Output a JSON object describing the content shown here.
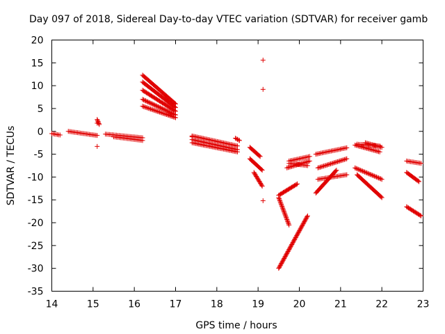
{
  "chart_data": {
    "type": "scatter",
    "title": "Day 097 of 2018, Sidereal Day-to-day VTEC variation (SDTVAR) for receiver gamb",
    "xlabel": "GPS time / hours",
    "ylabel": "SDTVAR / TECUs",
    "xlim": [
      14,
      23
    ],
    "ylim": [
      -35,
      20
    ],
    "x_ticks": [
      "14",
      "15",
      "16",
      "17",
      "18",
      "19",
      "20",
      "21",
      "22",
      "23"
    ],
    "y_ticks": [
      "20",
      "15",
      "10",
      "5",
      "0",
      "-5",
      "-10",
      "-15",
      "-20",
      "-25",
      "-30",
      "-35"
    ],
    "grid": false,
    "marker": "+",
    "color": "#e00000",
    "segments": [
      {
        "x": [
          14.0,
          14.2
        ],
        "y": [
          -0.5,
          -0.8
        ]
      },
      {
        "x": [
          14.4,
          15.1
        ],
        "y": [
          0.0,
          -0.9
        ]
      },
      {
        "x": [
          15.1,
          15.15
        ],
        "y": [
          2.6,
          1.5
        ]
      },
      {
        "x": [
          15.3,
          16.2
        ],
        "y": [
          -0.6,
          -1.4
        ]
      },
      {
        "x": [
          15.5,
          16.2
        ],
        "y": [
          -1.2,
          -2.0
        ]
      },
      {
        "x": [
          16.2,
          17.0
        ],
        "y": [
          12.3,
          6.0
        ]
      },
      {
        "x": [
          16.2,
          17.0
        ],
        "y": [
          10.8,
          5.2
        ]
      },
      {
        "x": [
          16.2,
          17.0
        ],
        "y": [
          9.0,
          4.4
        ]
      },
      {
        "x": [
          16.2,
          17.0
        ],
        "y": [
          7.0,
          3.6
        ]
      },
      {
        "x": [
          16.2,
          17.0
        ],
        "y": [
          5.5,
          3.0
        ]
      },
      {
        "x": [
          17.4,
          18.5
        ],
        "y": [
          -1.0,
          -3.2
        ]
      },
      {
        "x": [
          17.4,
          18.5
        ],
        "y": [
          -1.8,
          -4.0
        ]
      },
      {
        "x": [
          17.4,
          18.5
        ],
        "y": [
          -2.5,
          -4.5
        ]
      },
      {
        "x": [
          18.45,
          18.55
        ],
        "y": [
          -1.5,
          -2.0
        ]
      },
      {
        "x": [
          18.8,
          19.05
        ],
        "y": [
          -3.5,
          -5.5
        ]
      },
      {
        "x": [
          18.8,
          19.1
        ],
        "y": [
          -6.0,
          -8.5
        ]
      },
      {
        "x": [
          18.9,
          19.1
        ],
        "y": [
          -9.0,
          -12.0
        ]
      },
      {
        "x": [
          19.5,
          19.75
        ],
        "y": [
          -14.5,
          -20.5
        ]
      },
      {
        "x": [
          19.5,
          19.95
        ],
        "y": [
          -14.0,
          -11.5
        ]
      },
      {
        "x": [
          19.5,
          20.2
        ],
        "y": [
          -30.0,
          -18.5
        ]
      },
      {
        "x": [
          19.75,
          20.25
        ],
        "y": [
          -6.5,
          -5.5
        ]
      },
      {
        "x": [
          19.7,
          20.25
        ],
        "y": [
          -8.0,
          -6.5
        ]
      },
      {
        "x": [
          19.75,
          20.2
        ],
        "y": [
          -7.0,
          -7.5
        ]
      },
      {
        "x": [
          20.4,
          21.15
        ],
        "y": [
          -5.0,
          -3.6
        ]
      },
      {
        "x": [
          20.45,
          21.15
        ],
        "y": [
          -8.0,
          -6.0
        ]
      },
      {
        "x": [
          20.45,
          21.15
        ],
        "y": [
          -10.5,
          -9.5
        ]
      },
      {
        "x": [
          20.4,
          20.9
        ],
        "y": [
          -13.5,
          -8.5
        ]
      },
      {
        "x": [
          21.35,
          21.95
        ],
        "y": [
          -3.0,
          -4.5
        ]
      },
      {
        "x": [
          21.4,
          21.95
        ],
        "y": [
          -2.8,
          -3.2
        ]
      },
      {
        "x": [
          21.6,
          22.0
        ],
        "y": [
          -2.5,
          -3.5
        ]
      },
      {
        "x": [
          21.35,
          22.0
        ],
        "y": [
          -8.0,
          -10.5
        ]
      },
      {
        "x": [
          21.4,
          22.0
        ],
        "y": [
          -9.5,
          -14.5
        ]
      },
      {
        "x": [
          22.6,
          22.95
        ],
        "y": [
          -6.5,
          -7.0
        ]
      },
      {
        "x": [
          22.6,
          22.9
        ],
        "y": [
          -9.0,
          -11.0
        ]
      },
      {
        "x": [
          22.6,
          22.95
        ],
        "y": [
          -16.5,
          -18.5
        ]
      }
    ],
    "points": [
      {
        "x": 15.1,
        "y": -3.3
      },
      {
        "x": 15.1,
        "y": 1.8
      },
      {
        "x": 19.12,
        "y": 15.6
      },
      {
        "x": 19.12,
        "y": 9.2
      },
      {
        "x": 19.12,
        "y": -15.2
      },
      {
        "x": 17.4,
        "y": -1.2
      }
    ]
  }
}
